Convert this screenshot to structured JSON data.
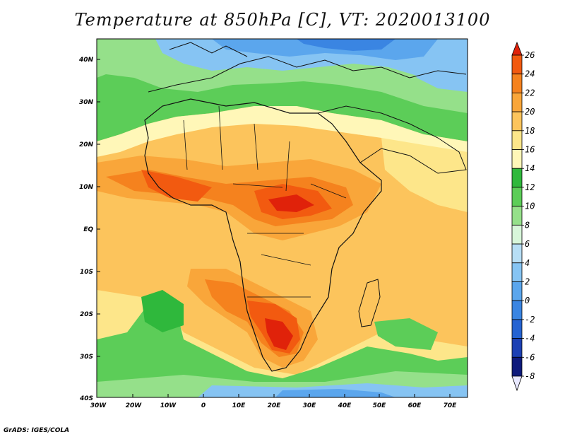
{
  "title": "Temperature at 850hPa [C], VT: 2020013100",
  "footer": "GrADS: IGES/COLA",
  "map": {
    "lat_labels": [
      "40N",
      "30N",
      "20N",
      "10N",
      "EQ",
      "10S",
      "20S",
      "30S",
      "40S"
    ],
    "lon_labels": [
      "30W",
      "20W",
      "10W",
      "0",
      "10E",
      "20E",
      "30E",
      "40E",
      "50E",
      "60E",
      "70E"
    ]
  },
  "colorbar": {
    "labels": [
      "26",
      "24",
      "22",
      "20",
      "18",
      "16",
      "14",
      "12",
      "10",
      "8",
      "6",
      "4",
      "2",
      "0",
      "-2",
      "-4",
      "-6",
      "-8"
    ],
    "colors": [
      "#e0220a",
      "#f25a10",
      "#f5821e",
      "#f9a63a",
      "#fcc45c",
      "#fde68a",
      "#fff7b8",
      "#2fb83c",
      "#5ccd58",
      "#95e08a",
      "#d8f6da",
      "#b7def5",
      "#86c4f3",
      "#5ba6ed",
      "#3a85e2",
      "#2563d2",
      "#1c40b4",
      "#0e1a7c",
      "#101060"
    ]
  }
}
